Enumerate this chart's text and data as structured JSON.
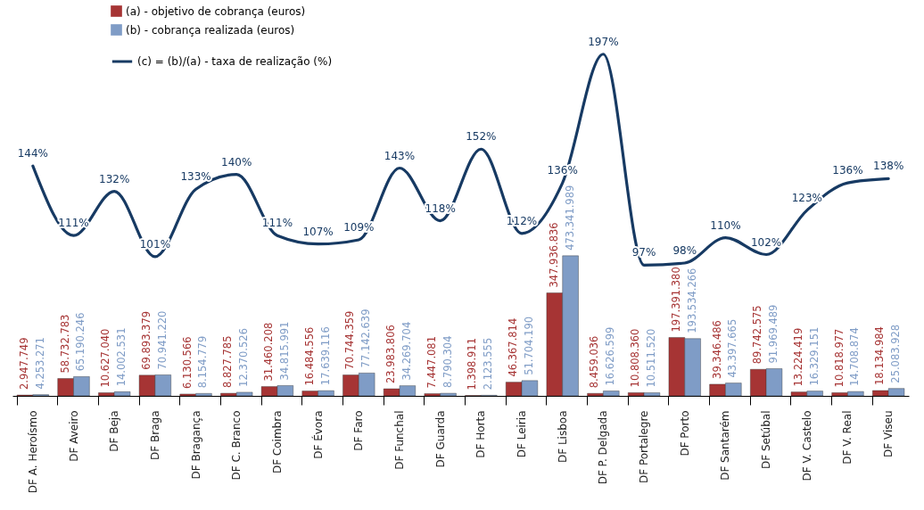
{
  "chart_data": {
    "type": "bar",
    "categories": [
      "DF A. Heroísmo",
      "DF Aveiro",
      "DF Beja",
      "DF Braga",
      "DF Bragança",
      "DF C. Branco",
      "DF Coimbra",
      "DF Évora",
      "DF Faro",
      "DF Funchal",
      "DF Guarda",
      "DF Horta",
      "DF Leiria",
      "DF Lisboa",
      "DF P. Delgada",
      "DF Portalegre",
      "DF Porto",
      "DF Santarém",
      "DF Setúbal",
      "DF V. Castelo",
      "DF V. Real",
      "DF Viseu"
    ],
    "series": [
      {
        "name": "(a) - objetivo de cobrança (euros)",
        "color": "#a63434",
        "values": [
          2947749,
          58732783,
          10627040,
          69893379,
          6130566,
          8827785,
          31460208,
          16484556,
          70744359,
          23983806,
          7447081,
          1398911,
          46367814,
          347936836,
          8459036,
          10808360,
          197391380,
          39346486,
          89742575,
          13224419,
          10818977,
          18134984
        ],
        "value_labels": [
          "2.947.749",
          "58.732.783",
          "10.627.040",
          "69.893.379",
          "6.130.566",
          "8.827.785",
          "31.460.208",
          "16.484.556",
          "70.744.359",
          "23.983.806",
          "7.447.081",
          "1.398.911",
          "46.367.814",
          "347.936.836",
          "8.459.036",
          "10.808.360",
          "197.391.380",
          "39.346.486",
          "89.742.575",
          "13.224.419",
          "10.818.977",
          "18.134.984"
        ]
      },
      {
        "name": "(b) - cobrança realizada (euros)",
        "color": "#7f9cc6",
        "values": [
          4253271,
          65190246,
          14002531,
          70941220,
          8154779,
          12370526,
          34815991,
          17639116,
          77142639,
          34269704,
          8790304,
          2123555,
          51704190,
          473341989,
          16626599,
          10511520,
          193534266,
          43397665,
          91969489,
          16329151,
          14708874,
          25083928
        ],
        "value_labels": [
          "4.253.271",
          "65.190.246",
          "14.002.531",
          "70.941.220",
          "8.154.779",
          "12.370.526",
          "34.815.991",
          "17.639.116",
          "77.142.639",
          "34.269.704",
          "8.790.304",
          "2.123.555",
          "51.704.190",
          "473.341.989",
          "16.626.599",
          "10.511.520",
          "193.534.266",
          "43.397.665",
          "91.969.489",
          "16.329.151",
          "14.708.874",
          "25.083.928"
        ]
      },
      {
        "name": "(c) = (b)/(a) - taxa de realização (%)",
        "type": "line",
        "axis": "y2",
        "color": "#173a63",
        "values": [
          144,
          111,
          132,
          101,
          133,
          140,
          111,
          107,
          109,
          143,
          118,
          152,
          112,
          136,
          197,
          97,
          98,
          110,
          102,
          123,
          136,
          138
        ],
        "value_labels": [
          "144%",
          "111%",
          "132%",
          "101%",
          "133%",
          "140%",
          "111%",
          "107%",
          "109%",
          "143%",
          "118%",
          "152%",
          "112%",
          "136%",
          "197%",
          "97%",
          "98%",
          "110%",
          "102%",
          "123%",
          "136%",
          "138%"
        ]
      }
    ],
    "legend": "top left",
    "grid": false,
    "tick_labels": "x"
  }
}
